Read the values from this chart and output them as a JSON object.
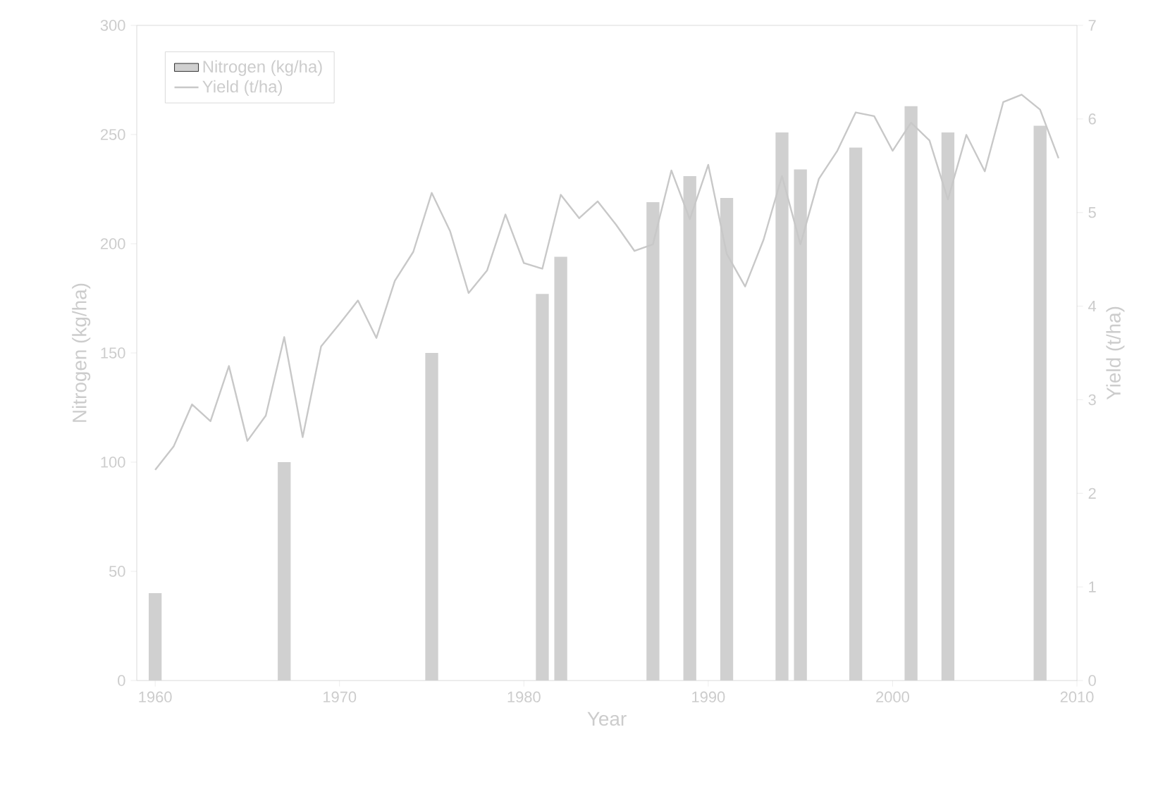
{
  "chart_data": {
    "type": "bar",
    "xlabel": "Year",
    "ylabel": "Nitrogen (kg/ha)",
    "y2label": "Yield (t/ha)",
    "xlim": [
      1959,
      2010
    ],
    "xticks": [
      1960,
      1970,
      1980,
      1990,
      2000,
      2010
    ],
    "ylim": [
      0,
      300
    ],
    "yticks": [
      0,
      50,
      100,
      150,
      200,
      250,
      300
    ],
    "y2lim": [
      0,
      7
    ],
    "y2ticks": [
      0,
      1,
      2,
      3,
      4,
      5,
      6,
      7
    ],
    "legend": "top left",
    "grid": false,
    "series": [
      {
        "name": "Nitrogen (kg/ha)",
        "color": "#d0d0d0",
        "x": [
          1960,
          1967,
          1975,
          1981,
          1982,
          1987,
          1989,
          1991,
          1994,
          1995,
          1998,
          2001,
          2003,
          2008
        ],
        "values": [
          40,
          100,
          150,
          177,
          194,
          219,
          231,
          221,
          251,
          234,
          244,
          263,
          251,
          254
        ]
      },
      {
        "name": "Yield (t/ha)",
        "type": "line",
        "axis": "y2",
        "color": "#c8c8c8",
        "x": [
          1960,
          1961,
          1962,
          1963,
          1964,
          1965,
          1966,
          1967,
          1968,
          1969,
          1970,
          1971,
          1972,
          1973,
          1974,
          1975,
          1976,
          1977,
          1978,
          1979,
          1980,
          1981,
          1982,
          1983,
          1984,
          1985,
          1986,
          1987,
          1988,
          1989,
          1990,
          1991,
          1992,
          1993,
          1994,
          1995,
          1996,
          1997,
          1998,
          1999,
          2000,
          2001,
          2002,
          2003,
          2004,
          2005,
          2006,
          2007,
          2008,
          2009
        ],
        "values": [
          2.25,
          2.5,
          2.95,
          2.77,
          3.36,
          2.56,
          2.83,
          3.67,
          2.6,
          3.57,
          3.81,
          4.06,
          3.66,
          4.27,
          4.58,
          5.21,
          4.8,
          4.14,
          4.38,
          4.98,
          4.46,
          4.4,
          5.19,
          4.94,
          5.12,
          4.87,
          4.59,
          4.66,
          5.45,
          4.93,
          5.51,
          4.56,
          4.21,
          4.71,
          5.39,
          4.66,
          5.36,
          5.66,
          6.07,
          6.03,
          5.66,
          5.96,
          5.77,
          5.14,
          5.83,
          5.44,
          6.18,
          6.26,
          6.1,
          5.58
        ]
      }
    ]
  }
}
